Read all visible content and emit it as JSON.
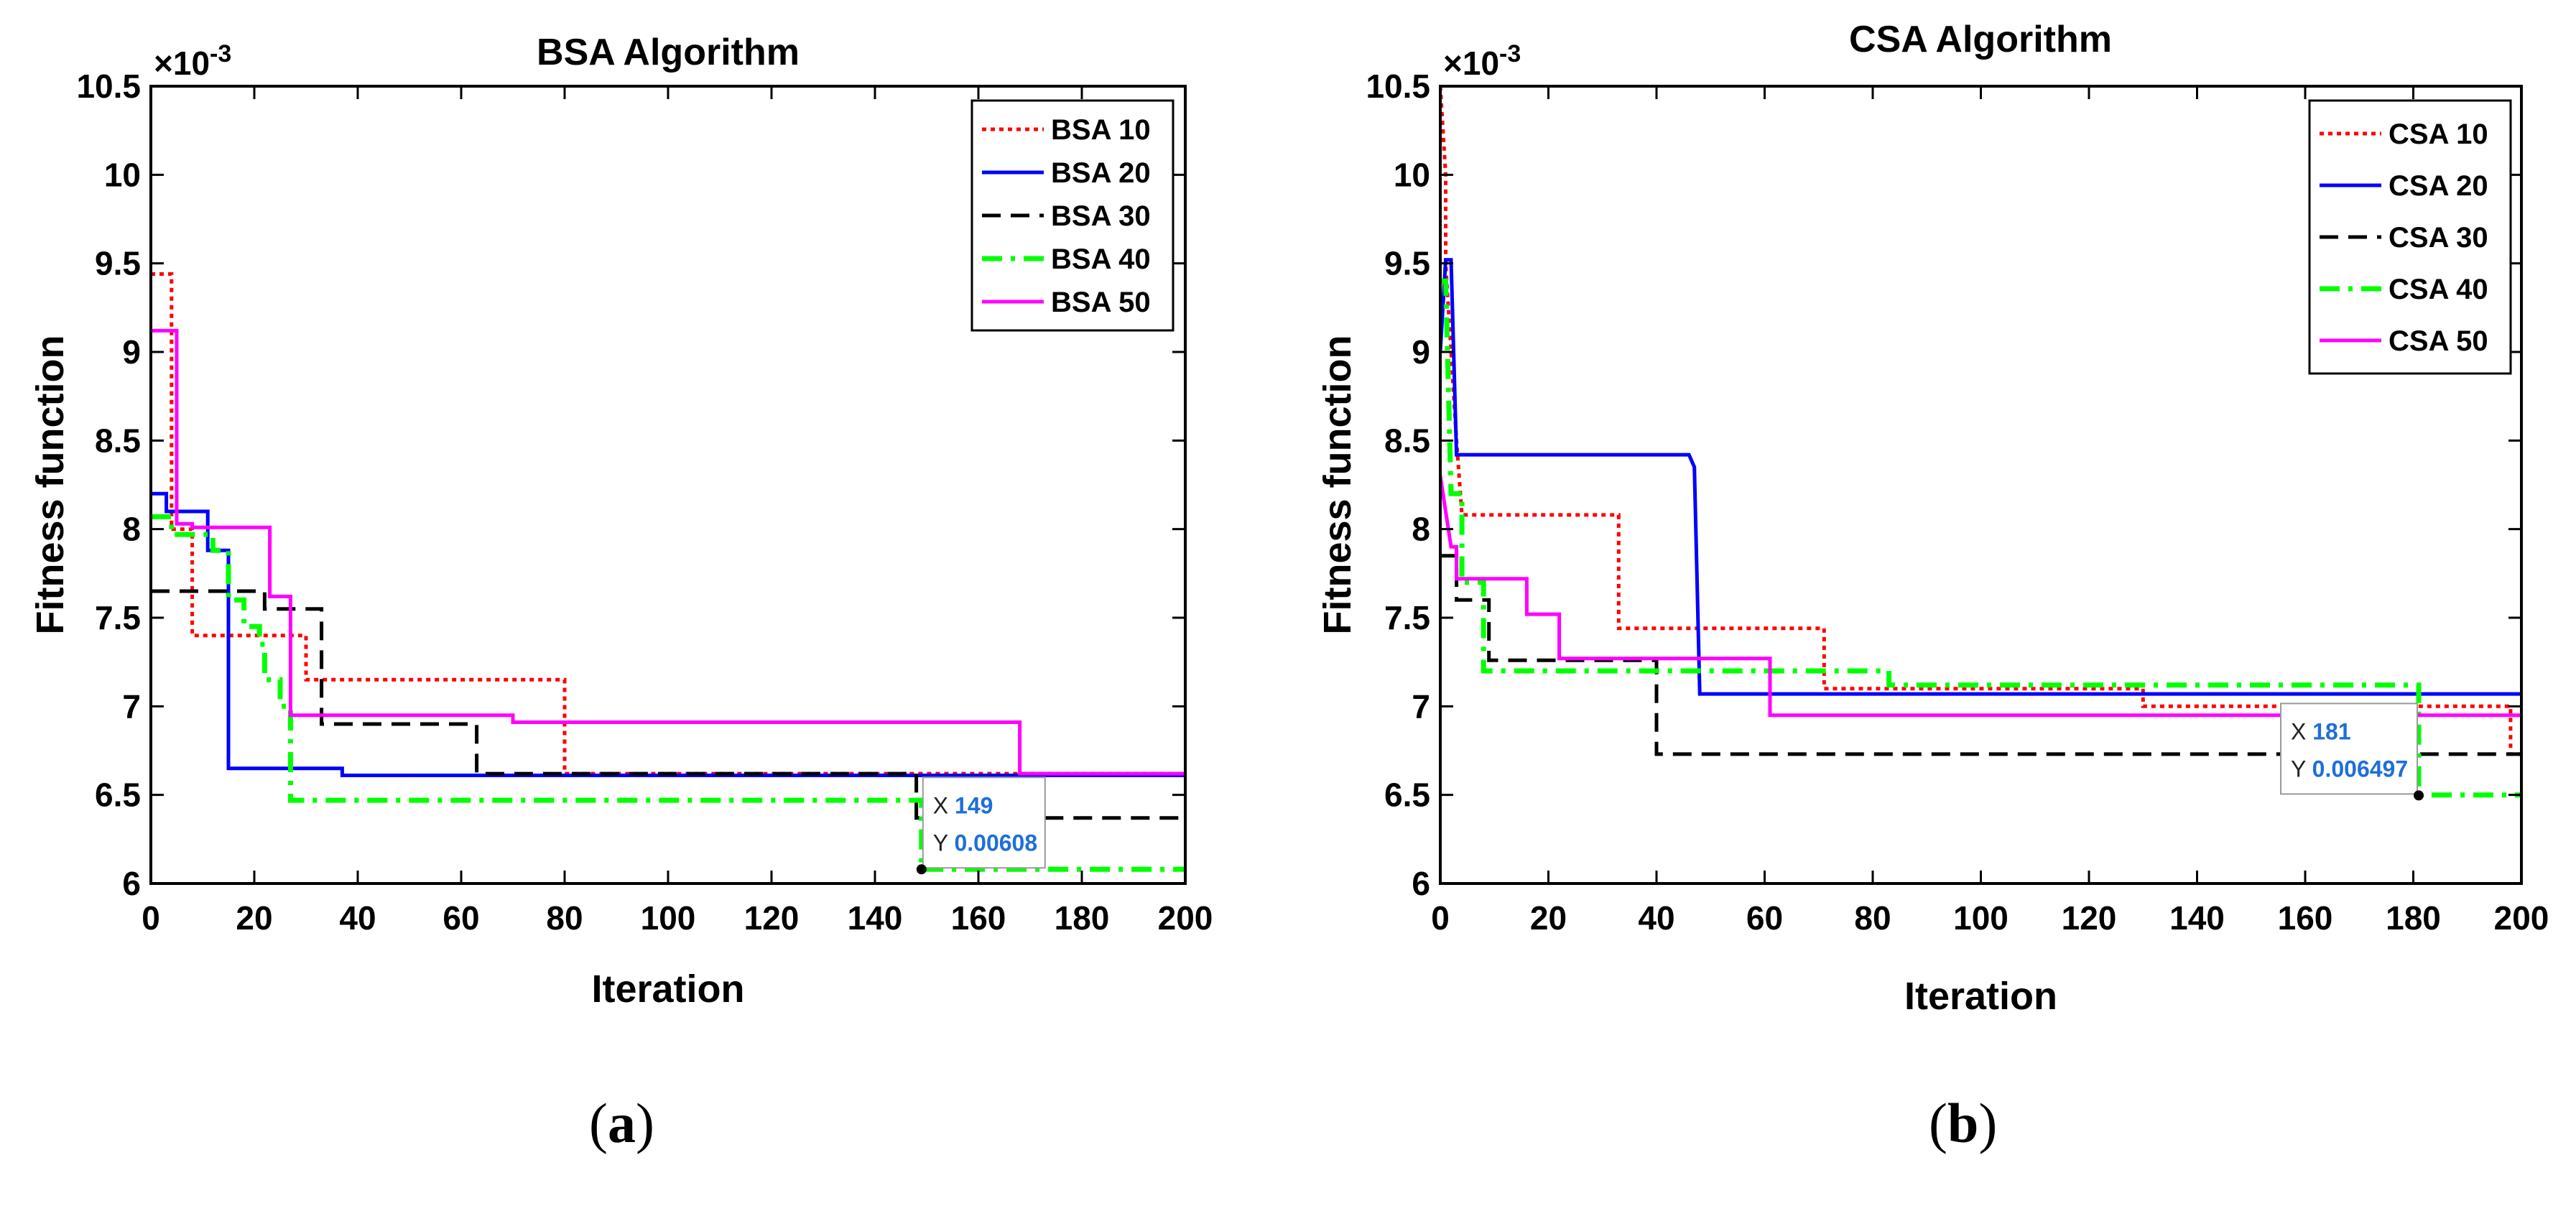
{
  "chart_data": [
    {
      "type": "line",
      "panel_caption": "a",
      "title": "BSA Algorithm",
      "xlabel": "Iteration",
      "ylabel": "Fitness function",
      "exponent_label": "×10",
      "exponent_power": "-3",
      "xlim": [
        0,
        200
      ],
      "ylim": [
        6,
        10.5
      ],
      "xticks": [
        "0",
        "20",
        "40",
        "60",
        "80",
        "100",
        "120",
        "140",
        "160",
        "180",
        "200"
      ],
      "yticks": [
        "6",
        "6.5",
        "7",
        "7.5",
        "8",
        "8.5",
        "9",
        "9.5",
        "10",
        "10.5"
      ],
      "legend_position": "top-right",
      "series": [
        {
          "name": "BSA 10",
          "color": "#ff0000",
          "dash": "dotted",
          "points": [
            [
              0,
              9.44
            ],
            [
              4,
              9.44
            ],
            [
              4,
              8.0
            ],
            [
              8,
              8.0
            ],
            [
              8,
              7.4
            ],
            [
              30,
              7.4
            ],
            [
              30,
              7.15
            ],
            [
              80,
              7.15
            ],
            [
              80,
              6.62
            ],
            [
              200,
              6.62
            ]
          ]
        },
        {
          "name": "BSA 20",
          "color": "#0000ff",
          "dash": "solid",
          "points": [
            [
              0,
              8.2
            ],
            [
              3,
              8.2
            ],
            [
              3,
              8.1
            ],
            [
              11,
              8.1
            ],
            [
              11,
              7.88
            ],
            [
              15,
              7.88
            ],
            [
              15,
              6.65
            ],
            [
              37,
              6.65
            ],
            [
              37,
              6.61
            ],
            [
              200,
              6.61
            ]
          ]
        },
        {
          "name": "BSA 30",
          "color": "#000000",
          "dash": "dashed",
          "points": [
            [
              0,
              7.65
            ],
            [
              22,
              7.65
            ],
            [
              22,
              7.55
            ],
            [
              33,
              7.55
            ],
            [
              33,
              6.9
            ],
            [
              63,
              6.9
            ],
            [
              63,
              6.62
            ],
            [
              148,
              6.62
            ],
            [
              148,
              6.37
            ],
            [
              200,
              6.37
            ]
          ]
        },
        {
          "name": "BSA 40",
          "color": "#00ff00",
          "dash": "dashdot",
          "points": [
            [
              0,
              8.07
            ],
            [
              4,
              8.07
            ],
            [
              4,
              7.97
            ],
            [
              12,
              7.97
            ],
            [
              12,
              7.88
            ],
            [
              15,
              7.88
            ],
            [
              15,
              7.6
            ],
            [
              18,
              7.6
            ],
            [
              18,
              7.45
            ],
            [
              21,
              7.45
            ],
            [
              21,
              7.35
            ],
            [
              22,
              7.35
            ],
            [
              22,
              7.15
            ],
            [
              25,
              7.15
            ],
            [
              25,
              7.0
            ],
            [
              27,
              7.0
            ],
            [
              27,
              6.47
            ],
            [
              149,
              6.47
            ],
            [
              149,
              6.08
            ],
            [
              200,
              6.08
            ]
          ]
        },
        {
          "name": "BSA 50",
          "color": "#ff00ff",
          "dash": "solid",
          "points": [
            [
              0,
              9.12
            ],
            [
              5,
              9.12
            ],
            [
              5,
              8.03
            ],
            [
              8,
              8.03
            ],
            [
              8,
              8.01
            ],
            [
              23,
              8.01
            ],
            [
              23,
              7.62
            ],
            [
              27,
              7.62
            ],
            [
              27,
              6.95
            ],
            [
              70,
              6.95
            ],
            [
              70,
              6.91
            ],
            [
              168,
              6.91
            ],
            [
              168,
              6.62
            ],
            [
              200,
              6.62
            ]
          ]
        }
      ],
      "datatip": {
        "marker_x": 149,
        "marker_y": 6.08,
        "x_label": "X",
        "x_value": "149",
        "y_label": "Y",
        "y_value": "0.00608"
      }
    },
    {
      "type": "line",
      "panel_caption": "b",
      "title": "CSA Algorithm",
      "xlabel": "Iteration",
      "ylabel": "Fitness function",
      "exponent_label": "×10",
      "exponent_power": "-3",
      "xlim": [
        0,
        200
      ],
      "ylim": [
        6,
        10.5
      ],
      "xticks": [
        "0",
        "20",
        "40",
        "60",
        "80",
        "100",
        "120",
        "140",
        "160",
        "180",
        "200"
      ],
      "yticks": [
        "6",
        "6.5",
        "7",
        "7.5",
        "8",
        "8.5",
        "9",
        "9.5",
        "10",
        "10.5"
      ],
      "legend_position": "top-right",
      "series": [
        {
          "name": "CSA 10",
          "color": "#ff0000",
          "dash": "dotted",
          "points": [
            [
              0,
              10.5
            ],
            [
              1,
              10.0
            ],
            [
              1,
              9.5
            ],
            [
              2,
              9.0
            ],
            [
              3,
              8.5
            ],
            [
              4,
              8.08
            ],
            [
              33,
              8.08
            ],
            [
              33,
              7.44
            ],
            [
              71,
              7.44
            ],
            [
              71,
              7.1
            ],
            [
              130,
              7.1
            ],
            [
              130,
              7.0
            ],
            [
              198,
              7.0
            ],
            [
              198,
              6.73
            ],
            [
              200,
              6.73
            ]
          ]
        },
        {
          "name": "CSA 20",
          "color": "#0000ff",
          "dash": "solid",
          "points": [
            [
              0,
              9.0
            ],
            [
              1,
              9.52
            ],
            [
              2,
              9.52
            ],
            [
              3,
              8.42
            ],
            [
              46,
              8.42
            ],
            [
              47,
              8.35
            ],
            [
              48,
              7.07
            ],
            [
              200,
              7.07
            ]
          ]
        },
        {
          "name": "CSA 30",
          "color": "#000000",
          "dash": "dashed",
          "points": [
            [
              0,
              7.85
            ],
            [
              3,
              7.85
            ],
            [
              3,
              7.6
            ],
            [
              9,
              7.6
            ],
            [
              9,
              7.26
            ],
            [
              40,
              7.26
            ],
            [
              40,
              6.73
            ],
            [
              200,
              6.73
            ]
          ]
        },
        {
          "name": "CSA 40",
          "color": "#00ff00",
          "dash": "dashdot",
          "points": [
            [
              0,
              9.4
            ],
            [
              1,
              9.4
            ],
            [
              2,
              8.2
            ],
            [
              4,
              8.2
            ],
            [
              4,
              7.7
            ],
            [
              8,
              7.7
            ],
            [
              8,
              7.2
            ],
            [
              83,
              7.2
            ],
            [
              83,
              7.12
            ],
            [
              181,
              7.12
            ],
            [
              181,
              6.5
            ],
            [
              200,
              6.5
            ]
          ]
        },
        {
          "name": "CSA 50",
          "color": "#ff00ff",
          "dash": "solid",
          "points": [
            [
              0,
              8.3
            ],
            [
              2,
              7.9
            ],
            [
              3,
              7.9
            ],
            [
              3,
              7.72
            ],
            [
              16,
              7.72
            ],
            [
              16,
              7.52
            ],
            [
              22,
              7.52
            ],
            [
              22,
              7.27
            ],
            [
              61,
              7.27
            ],
            [
              61,
              6.95
            ],
            [
              200,
              6.95
            ]
          ]
        }
      ],
      "datatip": {
        "marker_x": 181,
        "marker_y": 6.497,
        "x_label": "X",
        "x_value": "181",
        "y_label": "Y",
        "y_value": "0.006497"
      }
    }
  ]
}
